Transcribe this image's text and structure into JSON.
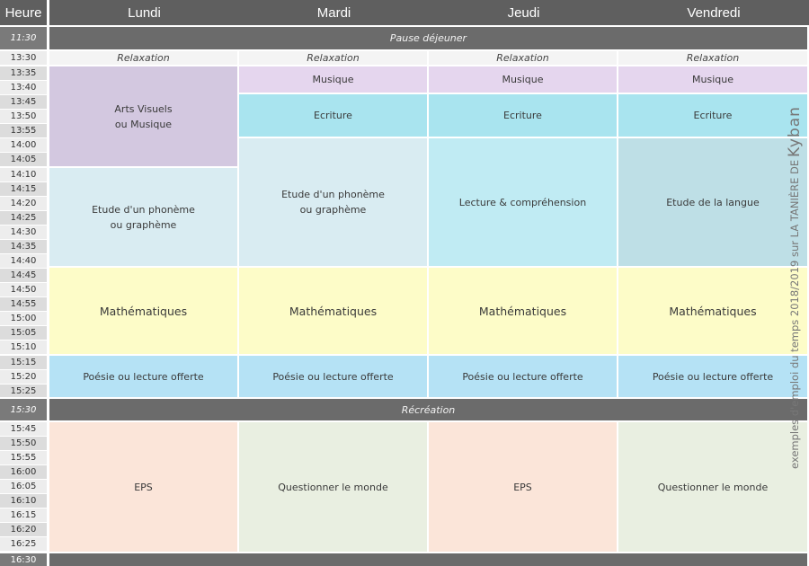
{
  "header": {
    "time_label": "Heure",
    "days": [
      "Lundi",
      "Mardi",
      "Jeudi",
      "Vendredi"
    ]
  },
  "times": [
    "11:30",
    "13:30",
    "13:35",
    "13:40",
    "13:45",
    "13:50",
    "13:55",
    "14:00",
    "14:05",
    "14:10",
    "14:15",
    "14:20",
    "14:25",
    "14:30",
    "14:35",
    "14:40",
    "14:45",
    "14:50",
    "14:55",
    "15:00",
    "15:05",
    "15:10",
    "15:15",
    "15:20",
    "15:25",
    "15:30",
    "15:45",
    "15:50",
    "15:55",
    "16:00",
    "16:05",
    "16:10",
    "16:15",
    "16:20",
    "16:25",
    "16:30"
  ],
  "bands": {
    "lunch": "Pause déjeuner",
    "recess": "Récréation"
  },
  "schedule": {
    "relaxation": "Relaxation",
    "arts_music": "Arts Visuels\nou Musique",
    "music": "Musique",
    "writing": "Ecriture",
    "phoneme": "Etude d'un phonème\nou graphème",
    "reading": "Lecture & compréhension",
    "language": "Etude de la langue",
    "math": "Mathématiques",
    "poetry": "Poésie ou lecture offerte",
    "eps": "EPS",
    "world": "Questionner le monde"
  },
  "credit": {
    "text": "exemples d'emploi du temps 2018/2019 sur LA TANIÈRE DE",
    "brand": "Kyban"
  },
  "colors": {
    "header": "#5f5f5f",
    "arts": "#d3c8e0",
    "music": "#e5d6ee",
    "writing": "#a9e4ef",
    "phoneme": "#d9ecf2",
    "reading": "#c0ebf3",
    "language": "#bedfe6",
    "math": "#fdfcc8",
    "poetry": "#b5e2f5",
    "eps": "#fbe5d9",
    "world": "#e9efe1"
  }
}
